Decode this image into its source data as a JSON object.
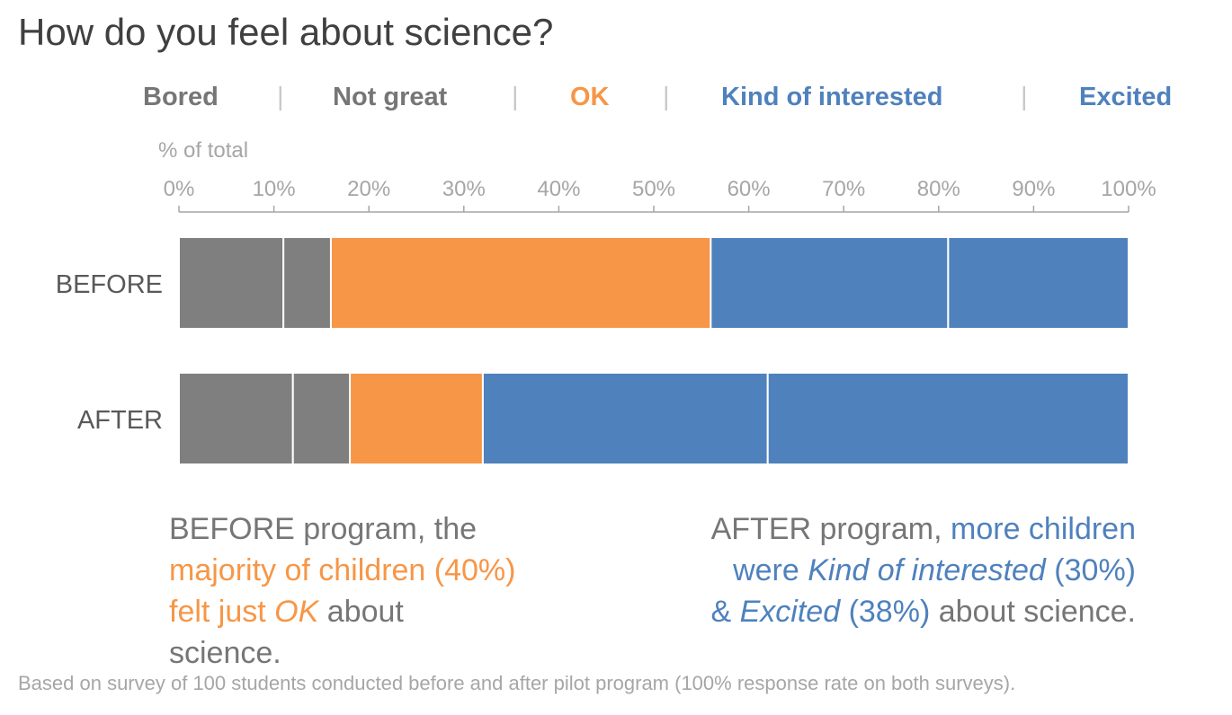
{
  "title": "How do you feel about science?",
  "legend": {
    "items": [
      {
        "label": "Bored",
        "color": "#767676"
      },
      {
        "label": "Not great",
        "color": "#767676"
      },
      {
        "label": "OK",
        "color": "#f79646"
      },
      {
        "label": "Kind of interested",
        "color": "#4f81bd"
      },
      {
        "label": "Excited",
        "color": "#4f81bd"
      }
    ],
    "separator": "|"
  },
  "chart_data": {
    "type": "bar",
    "orientation": "horizontal",
    "stacked": true,
    "axis_title": "% of total",
    "xlim": [
      0,
      100
    ],
    "ticks": [
      "0%",
      "10%",
      "20%",
      "30%",
      "40%",
      "50%",
      "60%",
      "70%",
      "80%",
      "90%",
      "100%"
    ],
    "categories": [
      "BEFORE",
      "AFTER"
    ],
    "series": [
      {
        "name": "Bored",
        "color": "#7f7f7f",
        "values": [
          11,
          12
        ]
      },
      {
        "name": "Not great",
        "color": "#7f7f7f",
        "values": [
          5,
          6
        ]
      },
      {
        "name": "OK",
        "color": "#f79646",
        "values": [
          40,
          14
        ]
      },
      {
        "name": "Kind of interested",
        "color": "#4f81bd",
        "values": [
          25,
          30
        ]
      },
      {
        "name": "Excited",
        "color": "#4f81bd",
        "values": [
          19,
          38
        ]
      }
    ]
  },
  "notes": {
    "before": {
      "t1": "BEFORE program, the",
      "t2": "majority of children (40%)",
      "t3": "felt just",
      "t4": "OK",
      "t5": "about",
      "t6": "science."
    },
    "after": {
      "t1": "AFTER program,",
      "t2": "more children",
      "t3": "were",
      "t4": "Kind of interested",
      "t5": "(30%)",
      "t6": "&",
      "t7": "Excited",
      "t8": "(38%)",
      "t9": "about science."
    }
  },
  "footnote": "Based on survey of 100 students conducted before and after pilot program (100% response rate on both surveys)."
}
